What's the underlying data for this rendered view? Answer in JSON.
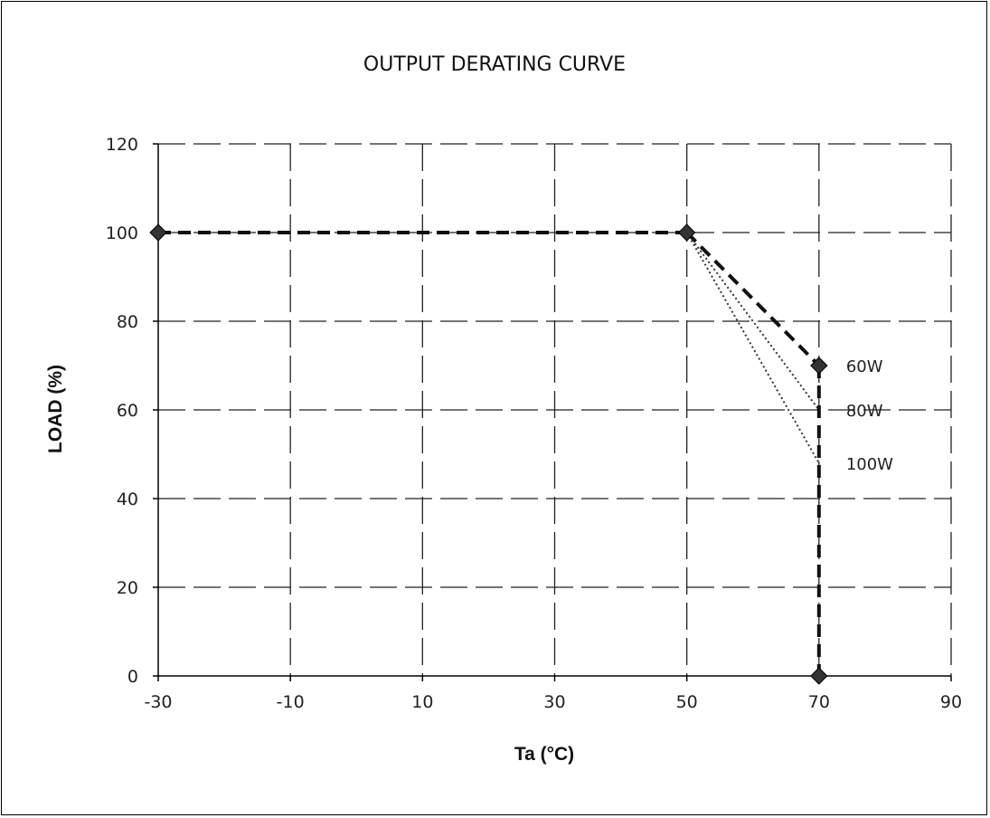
{
  "chart_data": {
    "type": "line",
    "title": "OUTPUT DERATING CURVE",
    "xlabel": "Ta (°C)",
    "ylabel": "LOAD (%)",
    "xlim": [
      -30,
      90
    ],
    "ylim": [
      0,
      120
    ],
    "xticks": [
      -30,
      -10,
      10,
      30,
      50,
      70,
      90
    ],
    "yticks": [
      0,
      20,
      40,
      60,
      80,
      100,
      120
    ],
    "grid": true,
    "series": [
      {
        "name": "60W",
        "style": "dashed-bold",
        "points": [
          [
            50,
            100
          ],
          [
            70,
            70
          ]
        ]
      },
      {
        "name": "80W",
        "style": "dotted",
        "points": [
          [
            50,
            100
          ],
          [
            70,
            60
          ]
        ]
      },
      {
        "name": "100W",
        "style": "dotted",
        "points": [
          [
            50,
            100
          ],
          [
            70,
            48
          ]
        ]
      }
    ],
    "base_curve": {
      "style": "dashed-bold",
      "points": [
        [
          -30,
          100
        ],
        [
          50,
          100
        ]
      ]
    },
    "cutoff_line": {
      "style": "dashed-bold",
      "points": [
        [
          70,
          70
        ],
        [
          70,
          0
        ]
      ]
    },
    "markers": [
      [
        -30,
        100
      ],
      [
        50,
        100
      ],
      [
        70,
        70
      ],
      [
        70,
        0
      ]
    ],
    "colors": {
      "line": "#111111",
      "grid": "#222222",
      "marker": "#333333"
    }
  }
}
